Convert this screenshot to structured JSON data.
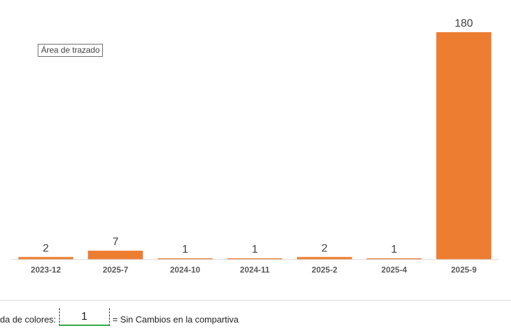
{
  "chart_data": {
    "type": "bar",
    "categories": [
      "2023-12",
      "2025-7",
      "2024-10",
      "2024-11",
      "2025-2",
      "2025-4",
      "2025-9"
    ],
    "values": [
      2,
      7,
      1,
      1,
      2,
      1,
      180
    ],
    "ylim": [
      0,
      180
    ],
    "grid": false,
    "bar_color": "#ed7d31"
  },
  "chart": {
    "tooltip": "Área de trazado"
  },
  "legend": {
    "label": "da de colores:",
    "value": "1",
    "description": "= Sin Cambios en la compartiva",
    "underline_color": "#2ea84a"
  }
}
